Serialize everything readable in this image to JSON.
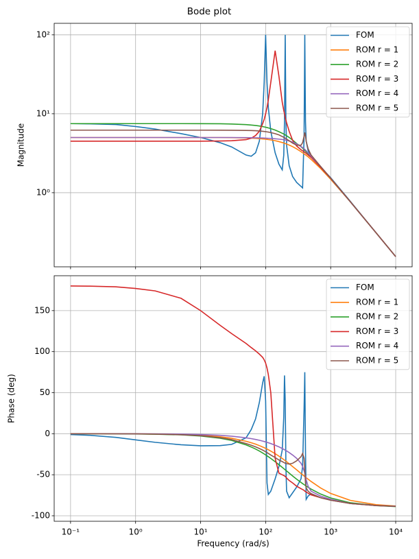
{
  "title": "Bode plot",
  "chart_data": [
    {
      "type": "line",
      "y_label": "Magnitude",
      "xscale": "log",
      "yscale": "log",
      "grid": true,
      "legend": "upper right",
      "xlim": [
        0.056,
        17900
      ],
      "ylim": [
        0.115,
        140
      ],
      "xticks": [
        0.1,
        1,
        10,
        100,
        1000,
        10000
      ],
      "yticks": [
        {
          "value": 1,
          "label": "10⁰"
        },
        {
          "value": 10,
          "label": "10¹"
        },
        {
          "value": 100,
          "label": "10²"
        }
      ],
      "x": [
        0.1,
        0.2,
        0.5,
        1,
        2,
        5,
        10,
        20,
        30,
        50,
        60,
        70,
        80,
        90,
        95,
        100,
        105,
        110,
        120,
        140,
        160,
        180,
        190,
        195,
        200,
        205,
        210,
        230,
        260,
        300,
        350,
        370,
        390,
        400,
        410,
        420,
        450,
        500,
        700,
        1000,
        2000,
        5000,
        10000
      ],
      "series": [
        {
          "name": "FOM",
          "color": "#1f77b4",
          "values": [
            7.5,
            7.45,
            7.3,
            6.9,
            6.4,
            5.6,
            5.0,
            4.3,
            3.8,
            3.0,
            2.9,
            3.2,
            4.5,
            10,
            25,
            100,
            25,
            12,
            6,
            3.2,
            2.3,
            1.95,
            3,
            8,
            100,
            8,
            4,
            2.2,
            1.6,
            1.35,
            1.2,
            1.15,
            5,
            100,
            8,
            4.5,
            3.4,
            2.9,
            2.1,
            1.55,
            0.78,
            0.31,
            0.155
          ]
        },
        {
          "name": "ROM r = 1",
          "color": "#ff7f0e",
          "values": [
            5,
            5,
            5,
            5,
            5,
            5,
            5,
            5,
            4.98,
            4.94,
            4.91,
            4.88,
            4.84,
            4.8,
            4.78,
            4.76,
            4.74,
            4.71,
            4.66,
            4.56,
            4.44,
            4.32,
            4.26,
            4.23,
            4.2,
            4.17,
            4.14,
            4.01,
            3.83,
            3.59,
            3.31,
            3.21,
            3.11,
            3.06,
            3.02,
            2.97,
            2.85,
            2.64,
            2.03,
            1.48,
            0.77,
            0.31,
            0.155
          ]
        },
        {
          "name": "ROM r = 2",
          "color": "#2ca02c",
          "values": [
            7.5,
            7.5,
            7.5,
            7.5,
            7.5,
            7.5,
            7.49,
            7.47,
            7.42,
            7.29,
            7.2,
            7.1,
            7.0,
            6.88,
            6.82,
            6.75,
            6.69,
            6.62,
            6.49,
            6.21,
            5.93,
            5.66,
            5.53,
            5.46,
            5.39,
            5.33,
            5.27,
            5.01,
            4.64,
            4.2,
            3.82,
            3.66,
            3.52,
            3.45,
            3.37,
            3.3,
            3.13,
            2.87,
            2.13,
            1.52,
            0.77,
            0.31,
            0.155
          ]
        },
        {
          "name": "ROM r = 3",
          "color": "#d62728",
          "values": [
            4.5,
            4.5,
            4.5,
            4.5,
            4.5,
            4.5,
            4.5,
            4.52,
            4.55,
            4.7,
            4.9,
            5.3,
            6,
            7.5,
            8.5,
            10,
            12,
            15,
            25,
            63,
            30,
            14,
            11,
            10,
            9,
            8.3,
            7.7,
            6,
            4.6,
            3.9,
            3.5,
            3.4,
            3.3,
            3.25,
            3.2,
            3.15,
            3.0,
            2.8,
            2.1,
            1.52,
            0.77,
            0.31,
            0.155
          ]
        },
        {
          "name": "ROM r = 4",
          "color": "#9467bd",
          "values": [
            5,
            5,
            5,
            5,
            5,
            5,
            5,
            5,
            5,
            4.98,
            4.97,
            4.96,
            4.95,
            4.93,
            4.92,
            4.91,
            4.9,
            4.89,
            4.87,
            4.82,
            4.77,
            4.72,
            4.69,
            4.67,
            4.65,
            4.63,
            4.61,
            4.52,
            4.38,
            4.15,
            3.85,
            3.73,
            3.6,
            3.54,
            3.47,
            3.4,
            3.2,
            2.9,
            2.15,
            1.53,
            0.77,
            0.31,
            0.155
          ]
        },
        {
          "name": "ROM r = 5",
          "color": "#8c564b",
          "values": [
            6.2,
            6.2,
            6.2,
            6.2,
            6.2,
            6.2,
            6.2,
            6.19,
            6.18,
            6.15,
            6.13,
            6.1,
            6.05,
            6.0,
            5.97,
            5.94,
            5.9,
            5.86,
            5.78,
            5.6,
            5.4,
            5.15,
            5.03,
            4.97,
            4.9,
            4.84,
            4.78,
            4.55,
            4.25,
            4.0,
            4.0,
            4.3,
            5.2,
            5.8,
            5.2,
            4.5,
            3.6,
            3.0,
            2.15,
            1.53,
            0.77,
            0.31,
            0.155
          ]
        }
      ]
    },
    {
      "type": "line",
      "y_label": "Phase (deg)",
      "x_label": "Frequency (rad/s)",
      "xscale": "log",
      "yscale": "linear",
      "grid": true,
      "legend": "upper right",
      "xlim": [
        0.056,
        17900
      ],
      "ylim": [
        -106.7,
        192.5
      ],
      "xticks": [
        {
          "value": 0.1,
          "label": "10⁻¹"
        },
        {
          "value": 1,
          "label": "10⁰"
        },
        {
          "value": 10,
          "label": "10¹"
        },
        {
          "value": 100,
          "label": "10²"
        },
        {
          "value": 1000,
          "label": "10³"
        },
        {
          "value": 10000,
          "label": "10⁴"
        }
      ],
      "yticks": [
        -100,
        -50,
        0,
        50,
        100,
        150
      ],
      "x": [
        0.1,
        0.2,
        0.5,
        1,
        2,
        5,
        10,
        20,
        30,
        50,
        60,
        70,
        80,
        90,
        95,
        100,
        105,
        110,
        120,
        140,
        160,
        180,
        190,
        195,
        200,
        205,
        210,
        230,
        260,
        300,
        350,
        370,
        390,
        400,
        410,
        420,
        450,
        500,
        700,
        1000,
        2000,
        5000,
        10000
      ],
      "series": [
        {
          "name": "FOM",
          "color": "#1f77b4",
          "values": [
            -1,
            -2,
            -4.5,
            -7.5,
            -10.5,
            -13.5,
            -14.7,
            -14.5,
            -13,
            -5,
            5,
            18,
            38,
            62,
            70,
            40,
            -60,
            -74,
            -70,
            -55,
            -40,
            -20,
            20,
            71,
            40,
            -40,
            -70,
            -78,
            -72,
            -65,
            -55,
            -40,
            30,
            75,
            -20,
            -80,
            -76,
            -73,
            -78,
            -81,
            -85,
            -87,
            -88.5
          ]
        },
        {
          "name": "ROM r = 1",
          "color": "#ff7f0e",
          "values": [
            0,
            0,
            -0.1,
            -0.2,
            -0.4,
            -0.9,
            -1.8,
            -3.7,
            -5.5,
            -9.2,
            -11,
            -12.7,
            -14.5,
            -16.2,
            -17,
            -17.9,
            -18.7,
            -19.5,
            -21.2,
            -24.3,
            -27.3,
            -30.1,
            -31.5,
            -32.2,
            -32.8,
            -33.5,
            -34.1,
            -36.6,
            -40,
            -44,
            -48.5,
            -50,
            -51.5,
            -52.2,
            -52.9,
            -53.6,
            -55.4,
            -58.2,
            -66.1,
            -72.8,
            -81.2,
            -86.5,
            -88.2
          ]
        },
        {
          "name": "ROM r = 2",
          "color": "#2ca02c",
          "values": [
            0,
            -0.1,
            -0.1,
            -0.3,
            -0.6,
            -1.4,
            -2.8,
            -5.5,
            -8.2,
            -13.6,
            -16.2,
            -18.7,
            -21.1,
            -23.5,
            -24.7,
            -25.8,
            -26.9,
            -28,
            -30.1,
            -34.1,
            -37.7,
            -41,
            -42.5,
            -43.3,
            -44,
            -44.7,
            -45.4,
            -48,
            -51.5,
            -55.4,
            -59.4,
            -60.8,
            -62,
            -62.6,
            -63.2,
            -63.8,
            -65.3,
            -67.5,
            -73.5,
            -78.3,
            -84.1,
            -87.6,
            -88.8
          ]
        },
        {
          "name": "ROM r = 3",
          "color": "#d62728",
          "values": [
            180,
            179.8,
            179,
            177,
            174,
            165,
            150,
            132,
            122,
            110,
            105,
            101,
            97,
            93,
            90,
            86,
            80,
            72,
            50,
            -30,
            -48,
            -50,
            -51,
            -51.5,
            -52,
            -53,
            -54,
            -57,
            -60,
            -64,
            -67,
            -68,
            -69,
            -70,
            -70.5,
            -71,
            -72.5,
            -74.5,
            -78,
            -81,
            -85,
            -87.5,
            -88.5
          ]
        },
        {
          "name": "ROM r = 4",
          "color": "#9467bd",
          "values": [
            0,
            0,
            0,
            -0.1,
            -0.2,
            -0.5,
            -1,
            -2,
            -3,
            -5,
            -6,
            -7,
            -8,
            -9,
            -9.5,
            -10,
            -10.5,
            -11,
            -12,
            -14,
            -16,
            -18,
            -19,
            -19.5,
            -20,
            -20.5,
            -21,
            -23,
            -26,
            -30,
            -36,
            -40,
            -45,
            -48,
            -52,
            -56,
            -64,
            -70,
            -76,
            -80,
            -85,
            -87.5,
            -88.5
          ]
        },
        {
          "name": "ROM r = 5",
          "color": "#8c564b",
          "values": [
            0,
            0,
            -0.1,
            -0.2,
            -0.5,
            -1.2,
            -2.4,
            -4.8,
            -7.2,
            -12,
            -14,
            -16,
            -18,
            -20,
            -21,
            -22,
            -23,
            -24,
            -26,
            -29,
            -32,
            -34,
            -35,
            -35.5,
            -36,
            -36.3,
            -36.5,
            -37,
            -36,
            -33,
            -28,
            -24,
            -30,
            -45,
            -60,
            -66,
            -70,
            -73,
            -78,
            -81,
            -85,
            -87.5,
            -88.5
          ]
        }
      ]
    }
  ]
}
